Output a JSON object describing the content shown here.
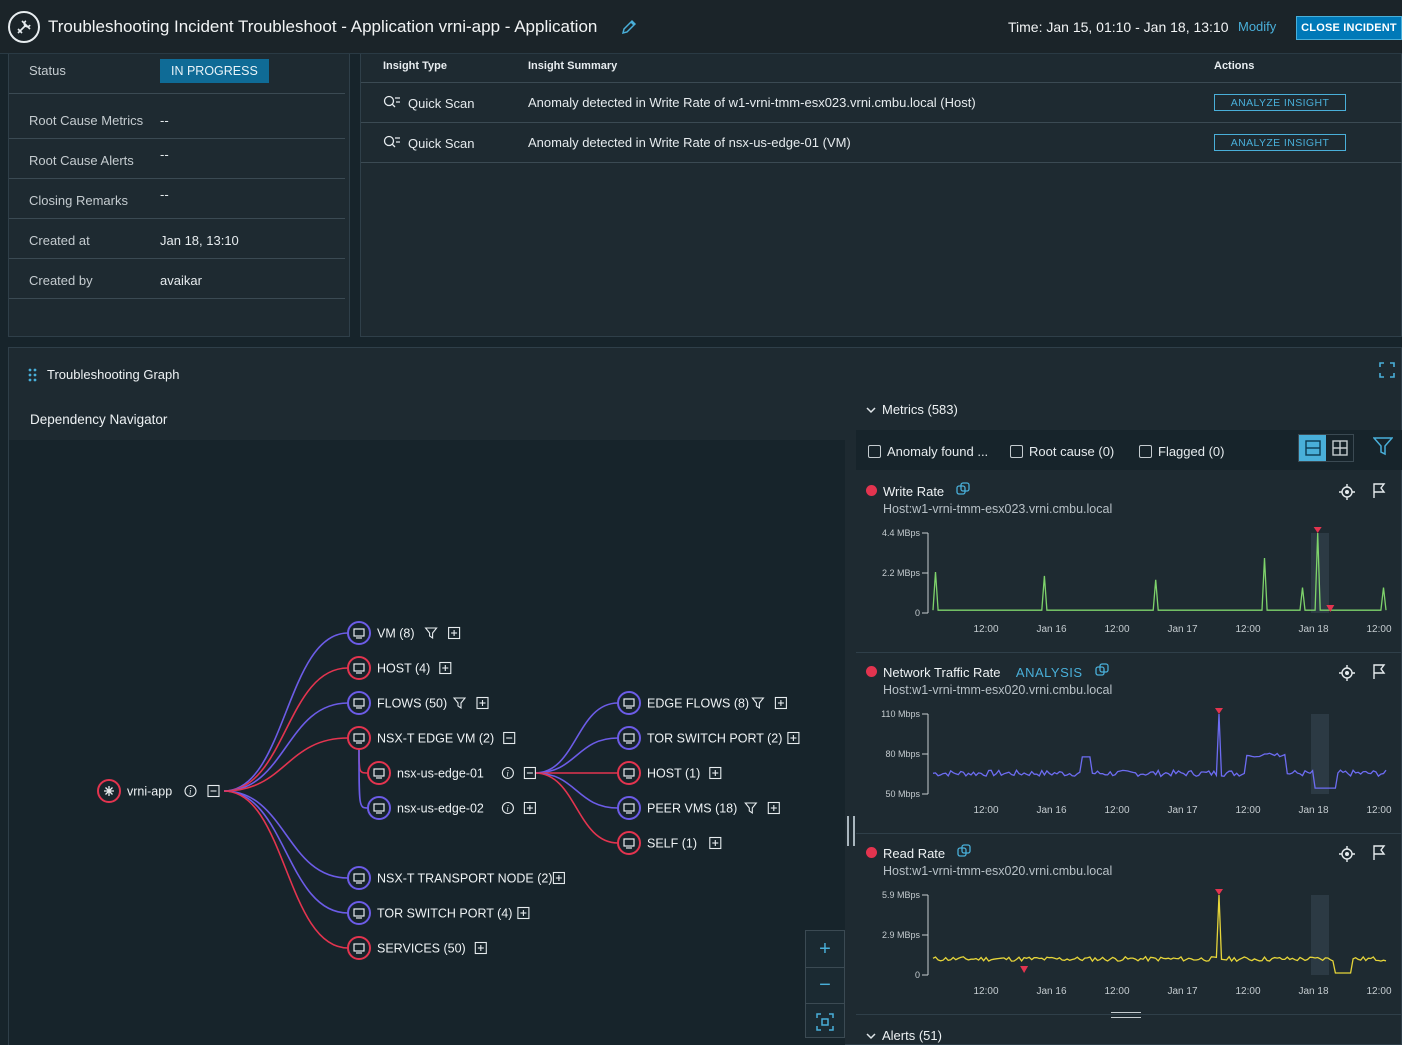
{
  "header": {
    "title": "Troubleshooting Incident Troubleshoot - Application vrni-app - Application",
    "time_range": "Time: Jan 15, 01:10 - Jan 18, 13:10",
    "modify_label": "Modify",
    "close_label": "CLOSE INCIDENT"
  },
  "details": {
    "status_label": "Status",
    "status_value": "IN PROGRESS",
    "rows": [
      {
        "label": "Root Cause Metrics",
        "value": "--"
      },
      {
        "label": "Root Cause Alerts",
        "value": "--"
      },
      {
        "label": "Closing Remarks",
        "value": "--"
      },
      {
        "label": "Created at",
        "value": "Jan 18, 13:10"
      },
      {
        "label": "Created by",
        "value": "avaikar"
      }
    ]
  },
  "insights": {
    "headers": {
      "type": "Insight Type",
      "summary": "Insight Summary",
      "actions": "Actions"
    },
    "rows": [
      {
        "type": "Quick Scan",
        "summary": "Anomaly detected in Write Rate of w1-vrni-tmm-esx023.vrni.cmbu.local (Host)",
        "action": "ANALYZE INSIGHT"
      },
      {
        "type": "Quick Scan",
        "summary": "Anomaly detected in Write Rate of nsx-us-edge-01 (VM)",
        "action": "ANALYZE INSIGHT"
      }
    ]
  },
  "graph": {
    "title": "Troubleshooting Graph",
    "navigator_title": "Dependency Navigator",
    "root": "vrni-app",
    "branches": [
      {
        "label": "VM (8)",
        "color": "#6c5ce7"
      },
      {
        "label": "HOST (4)",
        "color": "#e3344f"
      },
      {
        "label": "FLOWS (50)",
        "color": "#6c5ce7"
      },
      {
        "label": "NSX-T EDGE VM (2)",
        "color": "#e3344f"
      },
      {
        "label": "NSX-T TRANSPORT NODE (2)",
        "color": "#6c5ce7"
      },
      {
        "label": "TOR SWITCH PORT (4)",
        "color": "#6c5ce7"
      },
      {
        "label": "SERVICES (50)",
        "color": "#e3344f"
      }
    ],
    "edge_vms": [
      "nsx-us-edge-01",
      "nsx-us-edge-02"
    ],
    "edge_children": [
      {
        "label": "EDGE FLOWS (8)",
        "color": "#6c5ce7"
      },
      {
        "label": "TOR SWITCH PORT (2)",
        "color": "#6c5ce7"
      },
      {
        "label": "HOST (1)",
        "color": "#e3344f"
      },
      {
        "label": "PEER VMS (18)",
        "color": "#6c5ce7"
      },
      {
        "label": "SELF (1)",
        "color": "#e3344f"
      }
    ]
  },
  "metrics": {
    "header": "Metrics (583)",
    "filters": [
      {
        "label": "Anomaly found ...",
        "checked": false
      },
      {
        "label": "Root cause (0)",
        "checked": false
      },
      {
        "label": "Flagged (0)",
        "checked": false
      }
    ],
    "cards": [
      {
        "name": "Write Rate",
        "source": "Host:w1-vrni-tmm-esx023.vrni.cmbu.local",
        "badge": "",
        "color": "#7ed36b",
        "y_ticks": [
          "4.4 MBps",
          "2.2 MBps",
          "0"
        ],
        "x_ticks": [
          "12:00",
          "Jan 16",
          "12:00",
          "Jan 17",
          "12:00",
          "Jan 18",
          "12:00"
        ]
      },
      {
        "name": "Network Traffic Rate",
        "source": "Host:w1-vrni-tmm-esx020.vrni.cmbu.local",
        "badge": "ANALYSIS",
        "color": "#6d6cf2",
        "y_ticks": [
          "110 Mbps",
          "80 Mbps",
          "50 Mbps"
        ],
        "x_ticks": [
          "12:00",
          "Jan 16",
          "12:00",
          "Jan 17",
          "12:00",
          "Jan 18",
          "12:00"
        ]
      },
      {
        "name": "Read Rate",
        "source": "Host:w1-vrni-tmm-esx020.vrni.cmbu.local",
        "badge": "",
        "color": "#e6d53a",
        "y_ticks": [
          "5.9 MBps",
          "2.9 MBps",
          "0"
        ],
        "x_ticks": [
          "12:00",
          "Jan 16",
          "12:00",
          "Jan 17",
          "12:00",
          "Jan 18",
          "12:00"
        ]
      }
    ]
  },
  "alerts": {
    "header": "Alerts (51)"
  }
}
